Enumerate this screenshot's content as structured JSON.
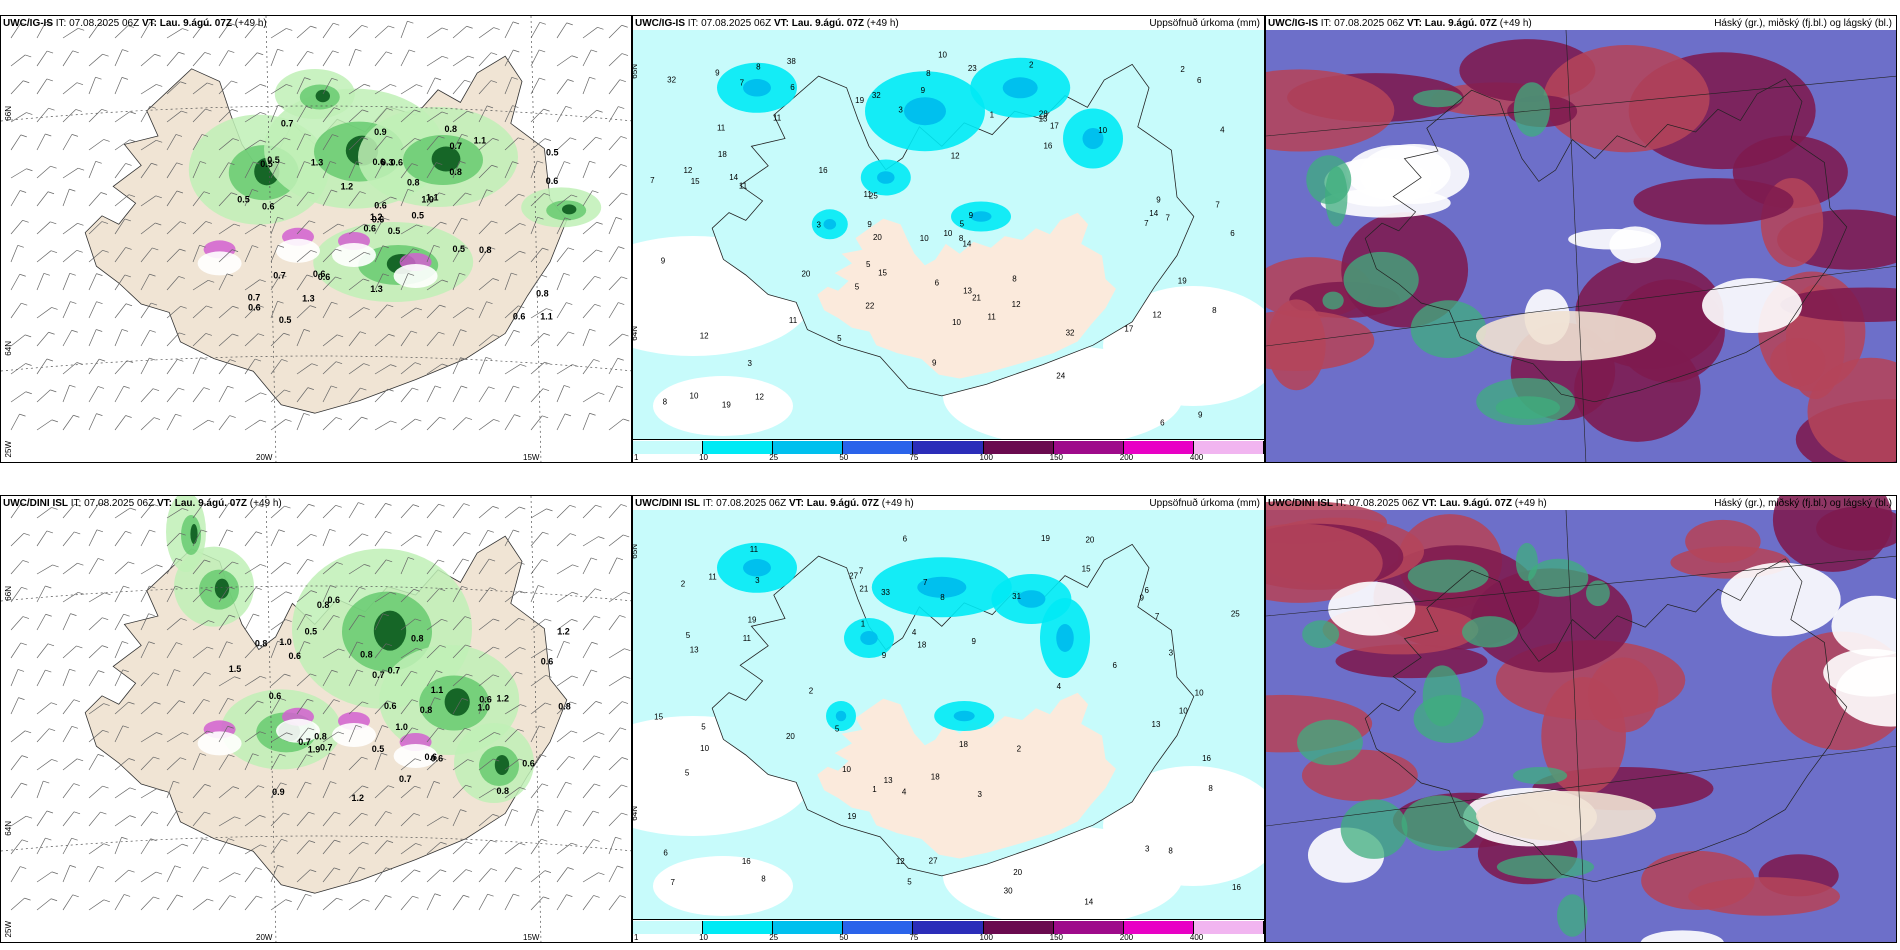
{
  "panels": [
    {
      "id": "p1",
      "model": "UWC/IG-IS",
      "it_label": "IT:",
      "it_value": "07.08.2025 06Z",
      "vt_label": "VT:",
      "vt_value": "Lau. 9.ágú. 07Z",
      "lead": "(+49 h)",
      "title": "",
      "kind": "wind",
      "labels": [
        "0.5",
        "0.5",
        "0.6",
        "0.7",
        "1.0",
        "0.6",
        "0.8",
        "0.6",
        "0.7",
        "0.5",
        "0.7",
        "1.1",
        "0.6",
        "0.5",
        "0.6",
        "0.8",
        "0.5",
        "0.6",
        "0.8",
        "0.7",
        "1.2",
        "0.6",
        "1.3",
        "0.3",
        "1.1",
        "0.8",
        "0.5",
        "0.9",
        "0.5",
        "0.5",
        "0.6",
        "1.2",
        "1.3",
        "0.6",
        "1.3",
        "1.1",
        "0.6",
        "0.6",
        "0.8"
      ],
      "axis": {
        "lat1": "66N",
        "lat2": "64N",
        "lon1": "20W",
        "lon2": "15W",
        "lonw": "25W"
      }
    },
    {
      "id": "p2",
      "model": "UWC/IG-IS",
      "it_label": "IT:",
      "it_value": "07.08.2025 06Z",
      "vt_label": "VT:",
      "vt_value": "Lau. 9.ágú. 07Z",
      "lead": "(+49 h)",
      "title": "Uppsöfnuð úrkoma (mm)",
      "kind": "precip",
      "labels": [
        "10",
        "10",
        "32",
        "38",
        "25",
        "21",
        "11",
        "15",
        "9",
        "6",
        "7",
        "9",
        "6",
        "12",
        "16",
        "32",
        "20",
        "24",
        "19",
        "14",
        "20",
        "23",
        "28",
        "32",
        "12",
        "16",
        "22",
        "17",
        "19",
        "11",
        "10",
        "12",
        "13",
        "11",
        "9",
        "7",
        "11",
        "9",
        "17",
        "10",
        "8",
        "14",
        "13",
        "12",
        "8",
        "9",
        "5",
        "8",
        "7",
        "4",
        "5",
        "6",
        "12",
        "19",
        "14",
        "10",
        "9",
        "7",
        "11",
        "8",
        "18",
        "12",
        "6",
        "15",
        "9",
        "7",
        "5",
        "3",
        "2",
        "3",
        "1",
        "10",
        "11",
        "3",
        "2",
        "9",
        "8",
        "8",
        "5",
        "6"
      ],
      "axis": {
        "lat1": "65N",
        "lat2": "64N"
      },
      "colorbar": [
        {
          "tick": "1",
          "color": "#c7fbfb"
        },
        {
          "tick": "10",
          "color": "#00eaf5"
        },
        {
          "tick": "25",
          "color": "#00c0ee"
        },
        {
          "tick": "50",
          "color": "#2a63ea"
        },
        {
          "tick": "75",
          "color": "#2b2db9"
        },
        {
          "tick": "100",
          "color": "#6a0a4f"
        },
        {
          "tick": "150",
          "color": "#9e0a8a"
        },
        {
          "tick": "200",
          "color": "#e800c5"
        },
        {
          "tick": "400",
          "color": "#f1b5f0"
        }
      ]
    },
    {
      "id": "p3",
      "model": "UWC/IG-IS",
      "it_label": "IT:",
      "it_value": "07.08.2025 06Z",
      "vt_label": "VT:",
      "vt_value": "Lau. 9.ágú. 07Z",
      "lead": "(+49 h)",
      "title": "Háský (gr.), miðský (fj.bl.) og lágský (bl.)",
      "kind": "cloud",
      "labels": [],
      "axis": {}
    },
    {
      "id": "p4",
      "model": "UWC/DINI ISL",
      "it_label": "IT:",
      "it_value": "07.08.2025 06Z",
      "vt_label": "VT:",
      "vt_value": "Lau. 9.ágú. 07Z",
      "lead": "(+49 h)",
      "title": "",
      "kind": "wind",
      "labels": [
        "0.6",
        "0.8",
        "0.7",
        "0.8",
        "0.7",
        "0.8",
        "1.5",
        "0.8",
        "0.6",
        "1.0",
        "0.6",
        "0.6",
        "0.8",
        "1.2",
        "1.0",
        "0.7",
        "0.8",
        "0.6",
        "0.7",
        "0.5",
        "0.8",
        "1.9",
        "0.5",
        "1.2",
        "0.6",
        "0.9",
        "1.2",
        "0.6",
        "0.7",
        "0.6",
        "1.1",
        "0.6",
        "1.0",
        "0.8"
      ],
      "axis": {
        "lat1": "66N",
        "lat2": "64N",
        "lon1": "20W",
        "lon2": "15W",
        "lonw": "25W"
      }
    },
    {
      "id": "p5",
      "model": "UWC/DINI ISL",
      "it_label": "IT:",
      "it_value": "07.08.2025 06Z",
      "vt_label": "VT:",
      "vt_value": "Lau. 9.ágú. 07Z",
      "lead": "(+49 h)",
      "title": "Uppsöfnuð úrkoma (mm)",
      "kind": "precip",
      "labels": [
        "11",
        "8",
        "9",
        "7",
        "5",
        "27",
        "30",
        "19",
        "33",
        "11",
        "15",
        "10",
        "13",
        "18",
        "27",
        "31",
        "19",
        "19",
        "16",
        "25",
        "20",
        "21",
        "14",
        "18",
        "9",
        "10",
        "7",
        "5",
        "8",
        "13",
        "20",
        "16",
        "8",
        "9",
        "6",
        "7",
        "3",
        "4",
        "5",
        "6",
        "2",
        "1",
        "11",
        "13",
        "16",
        "20",
        "12",
        "18",
        "15",
        "10",
        "3",
        "6",
        "8",
        "4",
        "2",
        "5",
        "3",
        "1",
        "7",
        "10",
        "5",
        "4",
        "6",
        "3",
        "2"
      ],
      "axis": {
        "lat1": "65N",
        "lat2": "64N"
      },
      "colorbar": [
        {
          "tick": "1",
          "color": "#c7fbfb"
        },
        {
          "tick": "10",
          "color": "#00eaf5"
        },
        {
          "tick": "25",
          "color": "#00c0ee"
        },
        {
          "tick": "50",
          "color": "#2a63ea"
        },
        {
          "tick": "75",
          "color": "#2b2db9"
        },
        {
          "tick": "100",
          "color": "#6a0a4f"
        },
        {
          "tick": "150",
          "color": "#9e0a8a"
        },
        {
          "tick": "200",
          "color": "#e800c5"
        },
        {
          "tick": "400",
          "color": "#f1b5f0"
        }
      ]
    },
    {
      "id": "p6",
      "model": "UWC/DINI ISL",
      "it_label": "IT:",
      "it_value": "07.08.2025 06Z",
      "vt_label": "VT:",
      "vt_value": "Lau. 9.ágú. 07Z",
      "lead": "(+49 h)",
      "title": "Háský (gr.), miðský (fj.bl.) og lágský (bl.)",
      "kind": "cloud",
      "labels": [],
      "axis": {}
    }
  ]
}
